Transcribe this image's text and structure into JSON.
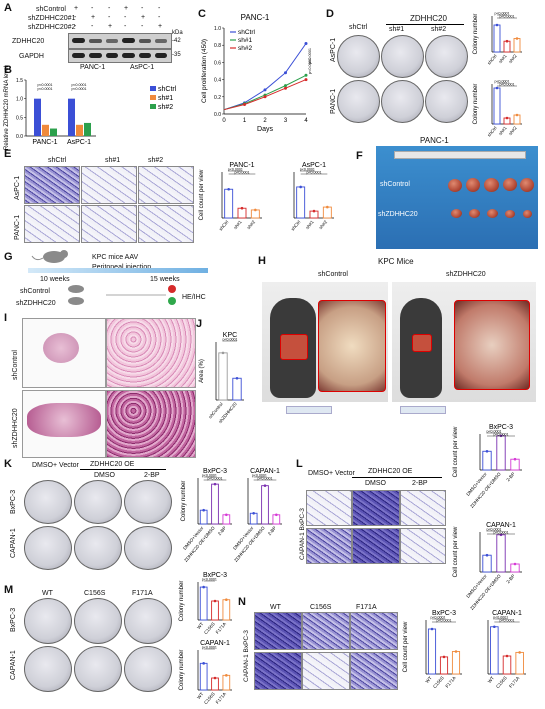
{
  "panels": [
    "A",
    "B",
    "C",
    "D",
    "E",
    "F",
    "G",
    "H",
    "I",
    "J",
    "K",
    "L",
    "M",
    "N"
  ],
  "panel_a": {
    "rows": [
      "shControl",
      "shZDHHC20#1",
      "shZDHHC20#2"
    ],
    "signs": [
      [
        "+",
        "-",
        "-",
        "+",
        "-",
        "-"
      ],
      [
        "-",
        "+",
        "-",
        "-",
        "+",
        "-"
      ],
      [
        "-",
        "-",
        "+",
        "-",
        "-",
        "+"
      ]
    ],
    "blots": [
      "ZDHHC20",
      "GAPDH"
    ],
    "kda": "kDa",
    "markers": [
      "-42",
      "-35"
    ],
    "cells": [
      "PANC-1",
      "AsPC-1"
    ]
  },
  "panel_b": {
    "ylabel": "Relative ZDHHC20 mRNA level",
    "ticks": [
      "0.0",
      "0.5",
      "1.0",
      "1.5"
    ],
    "groups": [
      "PANC-1",
      "AsPC-1"
    ],
    "legend": [
      "shCtrl",
      "sh#1",
      "sh#2"
    ],
    "p_labels": [
      "p<0.0001",
      "p<0.0001",
      "p<0.0001",
      "p<0.0001"
    ]
  },
  "panel_c": {
    "title": "PANC-1",
    "xlabel": "Days",
    "ylabel": "Cell proliferation (450)",
    "legend": [
      "shCtrl",
      "sh#1",
      "sh#2"
    ],
    "xticks": [
      "0",
      "1",
      "2",
      "3",
      "4"
    ],
    "yticks": [
      "0.0",
      "0.2",
      "0.4",
      "0.6",
      "0.8",
      "1.0"
    ],
    "p_labels": [
      "p<0.0001",
      "p<0.0001"
    ]
  },
  "panel_d": {
    "header_left": "shCtrl",
    "header_right": "ZDHHC20",
    "cols": [
      "sh#1",
      "sh#2"
    ],
    "rows": [
      "AsPC-1",
      "PANC-1"
    ],
    "ylabel": "Colony number",
    "xcats": [
      "shCtrl",
      "sh#1",
      "sh#2"
    ],
    "p_labels": [
      "p<0.0001",
      "p<0.0001"
    ]
  },
  "panel_e": {
    "cols": [
      "shCtrl",
      "sh#1",
      "sh#2"
    ],
    "rows": [
      "AsPC-1",
      "PANC-1"
    ],
    "charts": [
      "PANC-1",
      "AsPC-1"
    ],
    "ylabel": "Cell count per view",
    "xcats": [
      "shCtrl",
      "sh#1",
      "sh#2"
    ],
    "p_labels": [
      "p<0.0001",
      "p<0.0001"
    ]
  },
  "panel_f": {
    "title": "PANC-1",
    "rows": [
      "shControl",
      "shZDHHC20"
    ]
  },
  "panel_g": {
    "title": "KPC mice AAV",
    "injection": "Peritoneal injection",
    "times": [
      "10 weeks",
      "15 weeks"
    ],
    "groups": [
      "shControl",
      "shZDHHC20"
    ],
    "readout": "HE/IHC"
  },
  "panel_h": {
    "title": "KPC Mice",
    "cols": [
      "shControl",
      "shZDHHC20"
    ]
  },
  "panel_i": {
    "rows": [
      "shControl",
      "shZDHHC20"
    ]
  },
  "panel_j": {
    "title": "KPC",
    "ylabel": "Area (%)",
    "yticks": [
      "0",
      "20",
      "40",
      "60",
      "80"
    ],
    "xcats": [
      "shControl",
      "shZDHHC20"
    ],
    "p_label": "p<0.0001"
  },
  "panel_k": {
    "header_left": "DMSO+ Vector",
    "header_right": "ZDHHC20 OE",
    "cols": [
      "DMSO",
      "2-BP"
    ],
    "rows": [
      "BxPC-3",
      "CAPAN-1"
    ],
    "charts": [
      "BxPC-3",
      "CAPAN-1"
    ],
    "ylabel": "Colony number",
    "xcats": [
      "DMSO+Vector",
      "ZDHHC20 OE+DMSO",
      "2-BP"
    ],
    "p_labels": [
      "p<0.0001",
      "p<0.0001",
      "p<0.0001",
      "p<0.0001"
    ]
  },
  "panel_l": {
    "header_left": "DMSO+ Vector",
    "header_right": "ZDHHC20 OE",
    "cols": [
      "DMSO",
      "2-BP"
    ],
    "rows": [
      "BxPC-3",
      "CAPAN-1"
    ],
    "charts": [
      "BxPC-3",
      "CAPAN-1"
    ],
    "ylabel": "Cell count per view",
    "p_labels": [
      "p<0.0001",
      "p<0.0001",
      "p<0.0001",
      "p<0.0001"
    ]
  },
  "panel_m": {
    "cols": [
      "WT",
      "C156S",
      "F171A"
    ],
    "rows": [
      "BxPC-3",
      "CAPAN-1"
    ],
    "charts": [
      "BxPC-3",
      "CAPAN-1"
    ],
    "ylabel": "Colony number",
    "xcats": [
      "WT",
      "C156S",
      "F171A"
    ],
    "p_labels": [
      "p<0.0001",
      "p<0.0001"
    ]
  },
  "panel_n": {
    "cols": [
      "WT",
      "C156S",
      "F171A"
    ],
    "rows": [
      "BxPC-3",
      "CAPAN-1"
    ],
    "charts": [
      "BxPC-3",
      "CAPAN-1"
    ],
    "ylabel": "Cell count per view",
    "xcats": [
      "WT",
      "C156S",
      "F171A"
    ],
    "p_labels": [
      "p<0.0001",
      "p<0.0001",
      "p<0.0001",
      "p<0.0001"
    ]
  },
  "colors": {
    "blue": "#3b4fd6",
    "orange": "#f08a3c",
    "green": "#2ca04c",
    "red": "#d62a2a",
    "magenta": "#d63ad6",
    "purple": "#7a2fb0"
  },
  "chart_data": [
    {
      "type": "bar",
      "id": "B",
      "categories": [
        "PANC-1",
        "AsPC-1"
      ],
      "series": [
        {
          "name": "shCtrl",
          "values": [
            1.0,
            1.0
          ]
        },
        {
          "name": "sh#1",
          "values": [
            0.3,
            0.3
          ]
        },
        {
          "name": "sh#2",
          "values": [
            0.2,
            0.35
          ]
        }
      ],
      "ylabel": "Relative ZDHHC20 mRNA level",
      "ylim": [
        0,
        1.5
      ]
    },
    {
      "type": "line",
      "id": "C",
      "title": "PANC-1",
      "x": [
        0,
        1,
        2,
        3,
        4
      ],
      "series": [
        {
          "name": "shCtrl",
          "values": [
            0.05,
            0.13,
            0.28,
            0.48,
            0.82
          ]
        },
        {
          "name": "sh#1",
          "values": [
            0.05,
            0.12,
            0.22,
            0.33,
            0.45
          ]
        },
        {
          "name": "sh#2",
          "values": [
            0.05,
            0.11,
            0.2,
            0.3,
            0.4
          ]
        }
      ],
      "xlabel": "Days",
      "ylabel": "Cell proliferation (450)",
      "ylim": [
        0,
        1.0
      ]
    },
    {
      "type": "bar",
      "id": "D-AsPC-1",
      "categories": [
        "shCtrl",
        "sh#1",
        "sh#2"
      ],
      "values": [
        150,
        60,
        75
      ],
      "ylabel": "Colony number",
      "ylim": [
        0,
        200
      ]
    },
    {
      "type": "bar",
      "id": "D-PANC-1",
      "categories": [
        "shCtrl",
        "sh#1",
        "sh#2"
      ],
      "values": [
        180,
        30,
        45
      ],
      "ylabel": "Colony number",
      "ylim": [
        0,
        200
      ]
    },
    {
      "type": "bar",
      "id": "E-PANC-1",
      "title": "PANC-1",
      "categories": [
        "shCtrl",
        "sh#1",
        "sh#2"
      ],
      "values": [
        500,
        170,
        140
      ],
      "ylabel": "Cell count per view",
      "ylim": [
        0,
        800
      ]
    },
    {
      "type": "bar",
      "id": "E-AsPC-1",
      "title": "AsPC-1",
      "categories": [
        "shCtrl",
        "sh#1",
        "sh#2"
      ],
      "values": [
        540,
        120,
        190
      ],
      "ylabel": "Cell count per view",
      "ylim": [
        0,
        800
      ]
    },
    {
      "type": "bar",
      "id": "J",
      "title": "KPC",
      "categories": [
        "shControl",
        "shZDHHC20"
      ],
      "values": [
        65,
        30
      ],
      "ylabel": "Area (%)",
      "ylim": [
        0,
        80
      ]
    },
    {
      "type": "bar",
      "id": "K-BxPC-3",
      "title": "BxPC-3",
      "categories": [
        "DMSO+Vector",
        "ZDHHC20 OE+DMSO",
        "2-BP"
      ],
      "values": [
        90,
        260,
        60
      ],
      "ylabel": "Colony number",
      "ylim": [
        0,
        300
      ]
    },
    {
      "type": "bar",
      "id": "K-CAPAN-1",
      "title": "CAPAN-1",
      "categories": [
        "DMSO+Vector",
        "ZDHHC20 OE+DMSO",
        "2-BP"
      ],
      "values": [
        70,
        250,
        60
      ],
      "ylabel": "Colony number",
      "ylim": [
        0,
        300
      ]
    },
    {
      "type": "bar",
      "id": "L-BxPC-3",
      "title": "BxPC-3",
      "categories": [
        "DMSO+Vector",
        "ZDHHC20 OE+DMSO",
        "2-BP"
      ],
      "values": [
        520,
        950,
        300
      ],
      "ylabel": "Cell count per view",
      "ylim": [
        0,
        1000
      ]
    },
    {
      "type": "bar",
      "id": "L-CAPAN-1",
      "title": "CAPAN-1",
      "categories": [
        "DMSO+Vector",
        "ZDHHC20 OE+DMSO",
        "2-BP"
      ],
      "values": [
        420,
        930,
        200
      ],
      "ylabel": "Cell count per view",
      "ylim": [
        0,
        1000
      ]
    },
    {
      "type": "bar",
      "id": "M-BxPC-3",
      "title": "BxPC-3",
      "categories": [
        "WT",
        "C156S",
        "F171A"
      ],
      "values": [
        260,
        150,
        160
      ],
      "ylabel": "Colony number",
      "ylim": [
        0,
        300
      ]
    },
    {
      "type": "bar",
      "id": "M-CAPAN-1",
      "title": "CAPAN-1",
      "categories": [
        "WT",
        "C156S",
        "F171A"
      ],
      "values": [
        200,
        90,
        110
      ],
      "ylabel": "Colony number",
      "ylim": [
        0,
        300
      ]
    },
    {
      "type": "bar",
      "id": "N-BxPC-3",
      "title": "BxPC-3",
      "categories": [
        "WT",
        "C156S",
        "F171A"
      ],
      "values": [
        1000,
        380,
        500
      ],
      "ylabel": "Cell count per view",
      "ylim": [
        0,
        1200
      ]
    },
    {
      "type": "bar",
      "id": "N-CAPAN-1",
      "title": "CAPAN-1",
      "categories": [
        "WT",
        "C156S",
        "F171A"
      ],
      "values": [
        1050,
        400,
        480
      ],
      "ylabel": "Cell count per view",
      "ylim": [
        0,
        1200
      ]
    }
  ]
}
